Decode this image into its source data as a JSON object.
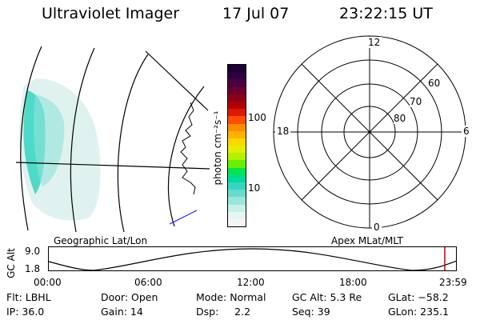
{
  "header": {
    "instrument": "Ultraviolet Imager",
    "date": "17 Jul 07",
    "time": "23:22:15 UT"
  },
  "geo_panel": {
    "label": "Geographic Lat/Lon"
  },
  "colorbar": {
    "unit_label": "photon cm⁻²s⁻¹",
    "ticks": [
      "100",
      "10"
    ],
    "colors": [
      "#1a0033",
      "#2d0040",
      "#4b0040",
      "#6a0033",
      "#8b0016",
      "#b30000",
      "#d91a00",
      "#ff4d00",
      "#ff8c00",
      "#ffb300",
      "#ffd700",
      "#e6ee00",
      "#b3f200",
      "#66f000",
      "#00e64d",
      "#00d99a",
      "#33d6c2",
      "#66dccc",
      "#99e6dc",
      "#c7f0ea",
      "#e6f5f2",
      "#f2f7f6"
    ]
  },
  "polar_panel": {
    "label": "Apex MLat/MLT",
    "mlt_labels": [
      "12",
      "18",
      "6",
      "0"
    ],
    "lat_labels": [
      "60",
      "70",
      "80"
    ]
  },
  "alt_plot": {
    "ylabel": "GC Alt",
    "yticks": [
      "9.0",
      "1.8"
    ],
    "xticks": [
      "00:00",
      "06:00",
      "12:00",
      "18:00",
      "23:59"
    ]
  },
  "info": {
    "flt": "Flt: LBHL",
    "ip": "IP: 36.0",
    "door": "Door: Open",
    "gain": "Gain: 14",
    "mode": "Mode: Normal",
    "dsp": "Dsp:     2.2",
    "gcalt": "GC Alt: 5.3 Re",
    "seq": "Seq: 39",
    "glat": "GLat: −58.2",
    "glon": "GLon: 235.1"
  }
}
